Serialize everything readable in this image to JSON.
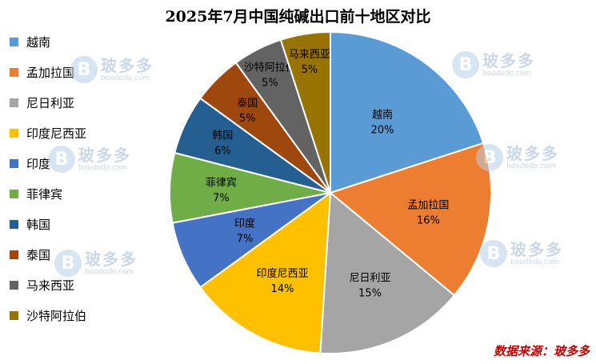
{
  "chart_data": {
    "type": "pie",
    "title": "2025年7月中国纯碱出口前十地区对比",
    "categories": [
      "越南",
      "孟加拉国",
      "尼日利亚",
      "印度尼西亚",
      "印度",
      "菲律宾",
      "韩国",
      "泰国",
      "马来西亚",
      "沙特阿拉伯"
    ],
    "values": [
      20,
      16,
      15,
      14,
      7,
      7,
      6,
      5,
      5,
      5
    ],
    "value_labels": [
      "20%",
      "16%",
      "15%",
      "14%",
      "7%",
      "7%",
      "6%",
      "5%",
      "5%",
      "5%"
    ],
    "slice_labels": [
      "越南",
      "孟加拉国",
      "尼日利亚",
      "印度尼西亚",
      "印度",
      "菲律宾",
      "韩国",
      "泰国",
      "沙特阿拉伯",
      "马来西亚"
    ],
    "colors": [
      "#5b9bd5",
      "#ed7d31",
      "#a5a5a5",
      "#ffc000",
      "#4472c4",
      "#70ad47",
      "#255e91",
      "#9e480e",
      "#636363",
      "#997300"
    ],
    "legend_position": "left"
  },
  "watermark": {
    "logo_char": "B",
    "name": "玻多多",
    "url": "boododo.com"
  },
  "source_note": "数据来源：玻多多"
}
